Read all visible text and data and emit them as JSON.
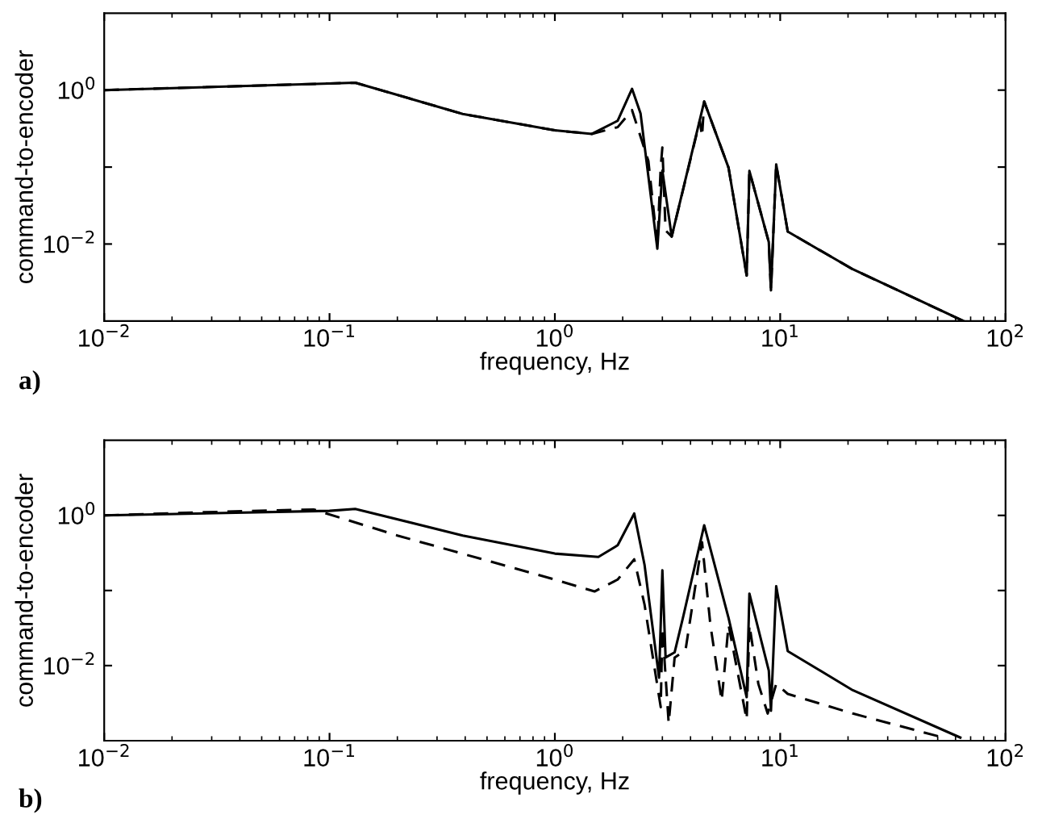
{
  "chart_data": [
    {
      "type": "line",
      "xlabel": "frequency, Hz",
      "ylabel": "command-to-encoder",
      "log": "xy",
      "grid": false,
      "legend": false,
      "xlim": [
        0.01,
        100
      ],
      "ylim": [
        0.001,
        10
      ],
      "xticks": [
        {
          "value": 0.01,
          "label": "10$^{−2}$"
        },
        {
          "value": 0.1,
          "label": "10$^{−1}$"
        },
        {
          "value": 1,
          "label": "10$^{0}$"
        },
        {
          "value": 10,
          "label": "10$^{1}$"
        },
        {
          "value": 100,
          "label": "10$^{2}$"
        }
      ],
      "yticks": [
        {
          "value": 0.01,
          "label": "10$^{−2}$"
        },
        {
          "value": 0.1,
          "label": null
        },
        {
          "value": 1,
          "label": "10$^{0}$"
        }
      ],
      "annotations": [
        "a)"
      ],
      "series": [
        {
          "color": "#000000",
          "line_style": "solid",
          "x": [
            0.01,
            0.1,
            0.13,
            0.39,
            1.0,
            1.46,
            1.9,
            2.2,
            2.4,
            2.85,
            3.0,
            3.3,
            4.6,
            5.9,
            7.1,
            7.3,
            8.9,
            9.1,
            9.6,
            10.8,
            21,
            65
          ],
          "values": [
            1.0,
            1.22,
            1.25,
            0.49,
            0.3,
            0.27,
            0.4,
            1.04,
            0.5,
            0.0087,
            0.09,
            0.0125,
            0.71,
            0.098,
            0.0039,
            0.089,
            0.0106,
            0.0025,
            0.108,
            0.0145,
            0.0047,
            0.001
          ]
        },
        {
          "color": "#000000",
          "line_style": "dashed",
          "x": [
            0.01,
            0.1,
            0.13,
            0.39,
            1.0,
            1.46,
            1.9,
            2.2,
            2.6,
            2.85,
            2.95,
            3.0,
            3.1,
            3.3,
            4.4,
            4.5,
            4.6,
            5.9,
            7.1,
            7.3,
            8.9,
            9.1,
            9.6,
            10.8,
            21,
            65
          ],
          "values": [
            1.0,
            1.22,
            1.25,
            0.49,
            0.3,
            0.27,
            0.33,
            0.55,
            0.12,
            0.0097,
            0.1,
            0.18,
            0.015,
            0.0125,
            0.4,
            0.25,
            0.71,
            0.098,
            0.0039,
            0.089,
            0.0106,
            0.0025,
            0.108,
            0.0145,
            0.0047,
            0.001
          ]
        }
      ]
    },
    {
      "type": "line",
      "xlabel": "frequency, Hz",
      "ylabel": "command-to-encoder",
      "log": "xy",
      "grid": false,
      "legend": false,
      "xlim": [
        0.01,
        100
      ],
      "ylim": [
        0.001,
        10
      ],
      "xticks": [
        {
          "value": 0.01,
          "label": "10$^{−2}$"
        },
        {
          "value": 0.1,
          "label": "10$^{−1}$"
        },
        {
          "value": 1,
          "label": "10$^{0}$"
        },
        {
          "value": 10,
          "label": "10$^{1}$"
        },
        {
          "value": 100,
          "label": "10$^{2}$"
        }
      ],
      "yticks": [
        {
          "value": 0.01,
          "label": "10$^{−2}$"
        },
        {
          "value": 0.1,
          "label": null
        },
        {
          "value": 1,
          "label": "10$^{0}$"
        }
      ],
      "annotations": [
        "b)"
      ],
      "series": [
        {
          "color": "#000000",
          "line_style": "solid",
          "x": [
            0.01,
            0.1,
            0.13,
            0.39,
            1.0,
            1.56,
            1.9,
            2.25,
            2.5,
            2.9,
            3.0,
            3.1,
            3.4,
            3.7,
            4.6,
            5.9,
            7.1,
            7.3,
            8.9,
            9.1,
            9.6,
            10.8,
            21,
            63
          ],
          "values": [
            1.0,
            1.15,
            1.22,
            0.54,
            0.31,
            0.28,
            0.4,
            1.06,
            0.22,
            0.0069,
            0.186,
            0.0128,
            0.015,
            0.043,
            0.74,
            0.043,
            0.0038,
            0.091,
            0.0086,
            0.0025,
            0.114,
            0.0156,
            0.0047,
            0.0011
          ]
        },
        {
          "color": "#000000",
          "line_style": "dashed",
          "x": [
            0.01,
            0.027,
            0.085,
            0.2,
            1.0,
            1.5,
            1.9,
            2.25,
            2.5,
            2.95,
            3.0,
            3.2,
            3.4,
            3.8,
            4.5,
            4.9,
            5.5,
            5.9,
            7.1,
            7.3,
            8.0,
            8.8,
            9.6,
            10.8,
            21,
            53
          ],
          "values": [
            1.0,
            1.1,
            1.2,
            0.54,
            0.14,
            0.097,
            0.14,
            0.26,
            0.065,
            0.0028,
            0.032,
            0.0017,
            0.0128,
            0.016,
            0.44,
            0.035,
            0.0034,
            0.035,
            0.0019,
            0.035,
            0.0057,
            0.0023,
            0.0057,
            0.0042,
            0.0023,
            0.0011
          ]
        }
      ]
    }
  ]
}
